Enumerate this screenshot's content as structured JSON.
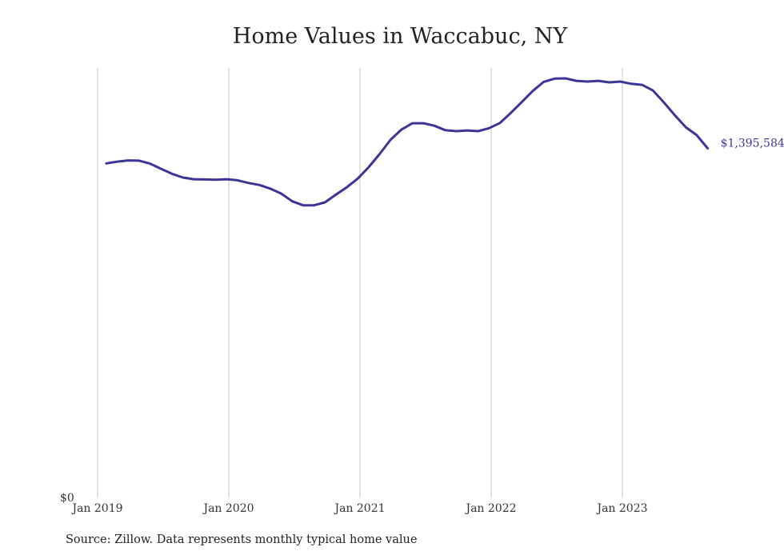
{
  "chart_data": {
    "type": "line",
    "title": "Home Values in Waccabuc, NY",
    "x_start": "Jan 2019",
    "x_tick_labels": [
      "Jan 2019",
      "Jan 2020",
      "Jan 2021",
      "Jan 2022",
      "Jan 2023"
    ],
    "y_tick_labels": [
      "$0"
    ],
    "ylim": [
      0,
      1720000
    ],
    "grid": "vertical lines at each Jan",
    "series": [
      {
        "color": "#3d3596",
        "x": [
          "2019-01",
          "2019-02",
          "2019-03",
          "2019-04",
          "2019-05",
          "2019-06",
          "2019-07",
          "2019-08",
          "2019-09",
          "2019-10",
          "2019-11",
          "2019-12",
          "2020-01",
          "2020-02",
          "2020-03",
          "2020-04",
          "2020-05",
          "2020-06",
          "2020-07",
          "2020-08",
          "2020-09",
          "2020-10",
          "2020-11",
          "2020-12",
          "2021-01",
          "2021-02",
          "2021-03",
          "2021-04",
          "2021-05",
          "2021-06",
          "2021-07",
          "2021-08",
          "2021-09",
          "2021-10",
          "2021-11",
          "2021-12",
          "2022-01",
          "2022-02",
          "2022-03",
          "2022-04",
          "2022-05",
          "2022-06",
          "2022-07",
          "2022-08",
          "2022-09",
          "2022-10",
          "2022-11",
          "2022-12",
          "2023-01",
          "2023-02",
          "2023-03",
          "2023-04",
          "2023-05",
          "2023-06",
          "2023-07",
          "2023-08"
        ],
        "values": [
          1335000,
          1342000,
          1347000,
          1346000,
          1334000,
          1313000,
          1293000,
          1278000,
          1271000,
          1270000,
          1269000,
          1271000,
          1267000,
          1256000,
          1248000,
          1233000,
          1213000,
          1182000,
          1166000,
          1166000,
          1178000,
          1209000,
          1239000,
          1274000,
          1320000,
          1373000,
          1431000,
          1472000,
          1497000,
          1497000,
          1487000,
          1469000,
          1465000,
          1468000,
          1465000,
          1477000,
          1498000,
          1539000,
          1583000,
          1627000,
          1664000,
          1677000,
          1678000,
          1668000,
          1665000,
          1668000,
          1662000,
          1665000,
          1656000,
          1652000,
          1629000,
          1581000,
          1529000,
          1481000,
          1449000,
          1395584
        ]
      }
    ],
    "end_label": "$1,395,584",
    "source": "Source: Zillow. Data represents monthly typical home value"
  }
}
